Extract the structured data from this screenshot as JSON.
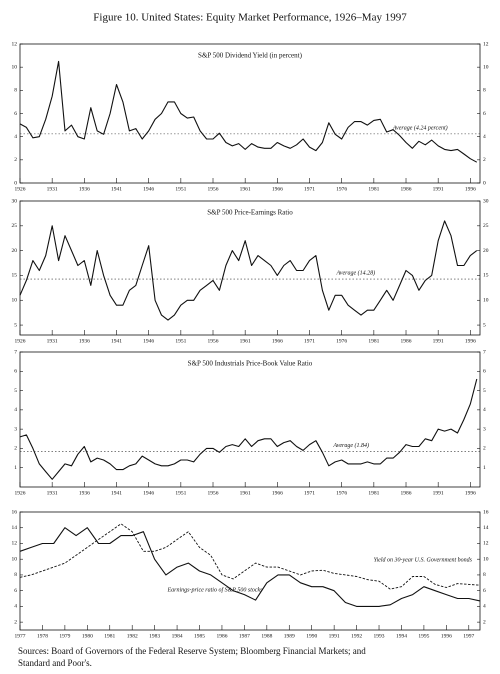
{
  "title": "Figure 10. United States: Equity Market Performance, 1926–May 1997",
  "source": [
    "Sources: Board of Governors of the Federal Reserve System; Bloomberg Financial Markets; and",
    "Standard and Poor's."
  ],
  "chart_data": [
    {
      "type": "line",
      "title": "S&P 500 Dividend Yield (in percent)",
      "x": [
        1926,
        1927,
        1928,
        1929,
        1930,
        1931,
        1932,
        1933,
        1934,
        1935,
        1936,
        1937,
        1938,
        1939,
        1940,
        1941,
        1942,
        1943,
        1944,
        1945,
        1946,
        1947,
        1948,
        1949,
        1950,
        1951,
        1952,
        1953,
        1954,
        1955,
        1956,
        1957,
        1958,
        1959,
        1960,
        1961,
        1962,
        1963,
        1964,
        1965,
        1966,
        1967,
        1968,
        1969,
        1970,
        1971,
        1972,
        1973,
        1974,
        1975,
        1976,
        1977,
        1978,
        1979,
        1980,
        1981,
        1982,
        1983,
        1984,
        1985,
        1986,
        1987,
        1988,
        1989,
        1990,
        1991,
        1992,
        1993,
        1994,
        1995,
        1996,
        1997
      ],
      "series": [
        {
          "color": "#111111",
          "values": [
            5.1,
            4.8,
            3.9,
            4.0,
            5.5,
            7.5,
            10.5,
            4.5,
            5.0,
            4.0,
            3.8,
            6.5,
            4.5,
            4.2,
            6.0,
            8.5,
            7.0,
            4.5,
            4.7,
            3.8,
            4.5,
            5.5,
            6.0,
            7.0,
            7.0,
            6.0,
            5.6,
            5.7,
            4.5,
            3.8,
            3.8,
            4.3,
            3.5,
            3.2,
            3.4,
            2.9,
            3.4,
            3.1,
            3.0,
            3.0,
            3.5,
            3.2,
            3.0,
            3.3,
            3.8,
            3.1,
            2.8,
            3.5,
            5.2,
            4.2,
            3.8,
            4.8,
            5.3,
            5.3,
            5.0,
            5.4,
            5.5,
            4.4,
            4.6,
            4.1,
            3.5,
            3.0,
            3.6,
            3.3,
            3.7,
            3.2,
            2.9,
            2.8,
            2.9,
            2.5,
            2.1,
            1.8
          ]
        }
      ],
      "average": {
        "value": 4.24,
        "label": "Average (4.24 percent)"
      },
      "xlim": [
        1926,
        1997.5
      ],
      "xticks": [
        1926,
        1931,
        1936,
        1941,
        1946,
        1951,
        1956,
        1961,
        1966,
        1971,
        1976,
        1981,
        1986,
        1991,
        1996
      ],
      "ylim": [
        0,
        12
      ],
      "yticks": [
        0,
        2,
        4,
        6,
        8,
        10,
        12
      ]
    },
    {
      "type": "line",
      "title": "S&P 500 Price-Earnings Ratio",
      "x": [
        1926,
        1927,
        1928,
        1929,
        1930,
        1931,
        1932,
        1933,
        1934,
        1935,
        1936,
        1937,
        1938,
        1939,
        1940,
        1941,
        1942,
        1943,
        1944,
        1945,
        1946,
        1947,
        1948,
        1949,
        1950,
        1951,
        1952,
        1953,
        1954,
        1955,
        1956,
        1957,
        1958,
        1959,
        1960,
        1961,
        1962,
        1963,
        1964,
        1965,
        1966,
        1967,
        1968,
        1969,
        1970,
        1971,
        1972,
        1973,
        1974,
        1975,
        1976,
        1977,
        1978,
        1979,
        1980,
        1981,
        1982,
        1983,
        1984,
        1985,
        1986,
        1987,
        1988,
        1989,
        1990,
        1991,
        1992,
        1993,
        1994,
        1995,
        1996,
        1997
      ],
      "series": [
        {
          "color": "#111111",
          "values": [
            11,
            14,
            18,
            16,
            19,
            25,
            18,
            23,
            20,
            17,
            18,
            13,
            20,
            15,
            11,
            9,
            9,
            12,
            13,
            17,
            21,
            10,
            7,
            6,
            7,
            9,
            10,
            10,
            12,
            13,
            14,
            12,
            17,
            20,
            18,
            22,
            17,
            19,
            18,
            17,
            15,
            17,
            18,
            16,
            16,
            18,
            19,
            12,
            8,
            11,
            11,
            9,
            8,
            7,
            8,
            8,
            10,
            12,
            10,
            13,
            16,
            15,
            12,
            14,
            15,
            22,
            26,
            23,
            17,
            17,
            19,
            20
          ]
        }
      ],
      "average": {
        "value": 14.28,
        "label": "Average (14.28)"
      },
      "xlim": [
        1926,
        1997.5
      ],
      "xticks": [
        1926,
        1931,
        1936,
        1941,
        1946,
        1951,
        1956,
        1961,
        1966,
        1971,
        1976,
        1981,
        1986,
        1991,
        1996
      ],
      "ylim": [
        3,
        30
      ],
      "yticks": [
        5,
        10,
        15,
        20,
        25,
        30
      ]
    },
    {
      "type": "line",
      "title": "S&P 500 Industrials Price-Book Value Ratio",
      "x": [
        1926,
        1927,
        1928,
        1929,
        1930,
        1931,
        1932,
        1933,
        1934,
        1935,
        1936,
        1937,
        1938,
        1939,
        1940,
        1941,
        1942,
        1943,
        1944,
        1945,
        1946,
        1947,
        1948,
        1949,
        1950,
        1951,
        1952,
        1953,
        1954,
        1955,
        1956,
        1957,
        1958,
        1959,
        1960,
        1961,
        1962,
        1963,
        1964,
        1965,
        1966,
        1967,
        1968,
        1969,
        1970,
        1971,
        1972,
        1973,
        1974,
        1975,
        1976,
        1977,
        1978,
        1979,
        1980,
        1981,
        1982,
        1983,
        1984,
        1985,
        1986,
        1987,
        1988,
        1989,
        1990,
        1991,
        1992,
        1993,
        1994,
        1995,
        1996,
        1997
      ],
      "series": [
        {
          "color": "#111111",
          "values": [
            2.6,
            2.7,
            2.0,
            1.2,
            0.8,
            0.4,
            0.8,
            1.2,
            1.1,
            1.7,
            2.1,
            1.3,
            1.5,
            1.4,
            1.2,
            0.9,
            0.9,
            1.1,
            1.2,
            1.6,
            1.4,
            1.2,
            1.1,
            1.1,
            1.2,
            1.4,
            1.4,
            1.3,
            1.7,
            2.0,
            2.0,
            1.8,
            2.1,
            2.2,
            2.1,
            2.5,
            2.1,
            2.4,
            2.5,
            2.5,
            2.1,
            2.3,
            2.4,
            2.1,
            1.9,
            2.2,
            2.4,
            1.8,
            1.1,
            1.3,
            1.4,
            1.2,
            1.2,
            1.2,
            1.3,
            1.2,
            1.2,
            1.5,
            1.5,
            1.8,
            2.2,
            2.1,
            2.1,
            2.5,
            2.4,
            3.0,
            2.9,
            3.0,
            2.8,
            3.5,
            4.3,
            5.6
          ]
        }
      ],
      "average": {
        "value": 1.84,
        "label": "Average (1.84)"
      },
      "xlim": [
        1926,
        1997.5
      ],
      "xticks": [
        1926,
        1931,
        1936,
        1941,
        1946,
        1951,
        1956,
        1961,
        1966,
        1971,
        1976,
        1981,
        1986,
        1991,
        1996
      ],
      "ylim": [
        0,
        7
      ],
      "yticks": [
        1,
        2,
        3,
        4,
        5,
        6,
        7
      ]
    },
    {
      "type": "line",
      "x": [
        1977,
        1977.5,
        1978,
        1978.5,
        1979,
        1979.5,
        1980,
        1980.5,
        1981,
        1981.5,
        1982,
        1982.5,
        1983,
        1983.5,
        1984,
        1984.5,
        1985,
        1985.5,
        1986,
        1986.5,
        1987,
        1987.5,
        1988,
        1988.5,
        1989,
        1989.5,
        1990,
        1990.5,
        1991,
        1991.5,
        1992,
        1992.5,
        1993,
        1993.5,
        1994,
        1994.5,
        1995,
        1995.5,
        1996,
        1996.5,
        1997,
        1997.5
      ],
      "series": [
        {
          "name": "Earnings-price ratio of S&P 500 stocks",
          "color": "#111111",
          "dashed": false,
          "values": [
            11,
            11.5,
            12,
            12,
            14,
            13,
            14,
            12,
            12,
            13,
            13,
            13.5,
            10,
            8,
            9,
            9.5,
            8.5,
            8,
            7,
            6,
            5.5,
            4.8,
            7,
            8,
            8,
            7,
            6.5,
            6.5,
            6,
            4.5,
            4,
            4,
            4,
            4.2,
            5,
            5.5,
            6.5,
            6,
            5.5,
            5,
            5,
            4.7
          ]
        },
        {
          "name": "Yield on 30-year U.S. Government bonds",
          "color": "#111111",
          "dashed": true,
          "values": [
            7.7,
            8.0,
            8.5,
            9.0,
            9.5,
            10.5,
            11.5,
            12.5,
            13.5,
            14.5,
            13.5,
            11.0,
            11.0,
            11.5,
            12.5,
            13.5,
            11.5,
            10.5,
            8.0,
            7.5,
            8.5,
            9.5,
            9.0,
            9.0,
            8.5,
            8.0,
            8.5,
            8.6,
            8.2,
            8.0,
            7.8,
            7.4,
            7.2,
            6.2,
            6.5,
            7.8,
            7.8,
            6.8,
            6.4,
            6.9,
            6.8,
            6.7
          ]
        }
      ],
      "xlim": [
        1977,
        1997.5
      ],
      "xticks": [
        1977,
        1978,
        1979,
        1980,
        1981,
        1982,
        1983,
        1984,
        1985,
        1986,
        1987,
        1988,
        1989,
        1990,
        1991,
        1992,
        1993,
        1994,
        1995,
        1996,
        1997
      ],
      "ylim": [
        1,
        16
      ],
      "yticks": [
        2,
        4,
        6,
        8,
        10,
        12,
        14,
        16
      ]
    }
  ]
}
